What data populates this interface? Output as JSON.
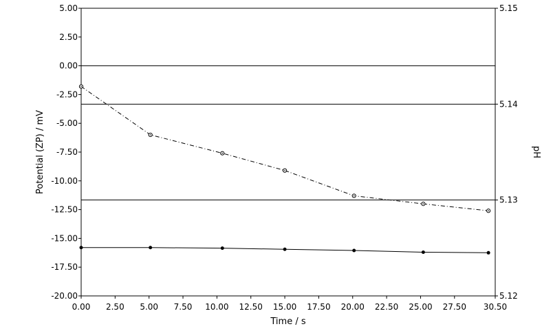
{
  "chart_data": {
    "type": "line",
    "xlabel": "Time / s",
    "ylabel": "Potential (ZP) / mV",
    "y2label": "pH",
    "xlim": [
      0,
      30.5
    ],
    "ylim": [
      -20,
      5
    ],
    "y2lim": [
      5.12,
      5.15
    ],
    "x_ticks": [
      "0.00",
      "2.50",
      "5.00",
      "7.50",
      "10.00",
      "12.50",
      "15.00",
      "17.50",
      "20.00",
      "22.50",
      "25.00",
      "27.50",
      "30.50"
    ],
    "y_ticks": [
      "5.00",
      "2.50",
      "0.00",
      "-2.50",
      "-5.00",
      "-7.50",
      "-10.00",
      "-12.50",
      "-15.00",
      "-17.50",
      "-20.00"
    ],
    "y2_ticks": [
      "5.15",
      "5.14",
      "5.13",
      "5.12"
    ],
    "grid": "horizontal lines at 0.00 mV, pH 5.14 and pH 5.13",
    "series": [
      {
        "axis": "left",
        "style": "dash-dot",
        "marker": "open-circle",
        "color": "#000000",
        "x": [
          0.0,
          5.1,
          10.4,
          15.0,
          20.1,
          25.2,
          30.0
        ],
        "values": [
          -1.8,
          -6.0,
          -7.6,
          -9.1,
          -11.3,
          -12.0,
          -12.6
        ]
      },
      {
        "axis": "left",
        "style": "solid",
        "marker": "filled-circle",
        "color": "#000000",
        "x": [
          0.0,
          5.1,
          10.4,
          15.0,
          20.1,
          25.2,
          30.0
        ],
        "values": [
          -15.8,
          -15.8,
          -15.85,
          -15.95,
          -16.05,
          -16.2,
          -16.25
        ]
      }
    ]
  }
}
